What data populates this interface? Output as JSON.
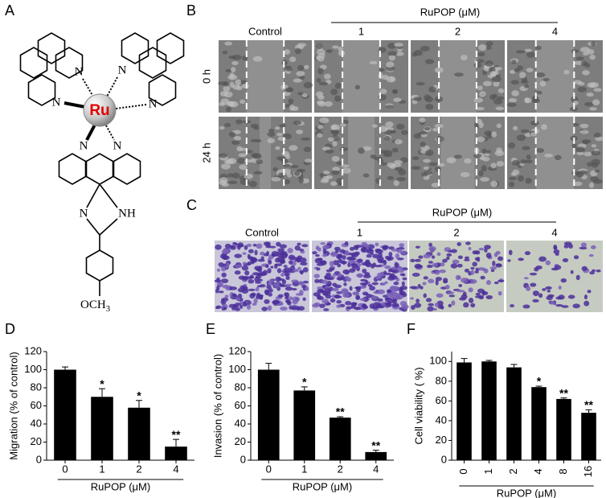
{
  "panel_labels": [
    "A",
    "B",
    "C",
    "D",
    "E",
    "F"
  ],
  "molecule": {
    "metal": "Ru",
    "atoms": [
      "N",
      "N",
      "N",
      "N",
      "N",
      "N",
      "N",
      "NH"
    ],
    "substituent": "OCH",
    "substituent_subscript": "3"
  },
  "wound_healing": {
    "group_title": "RuPOP (μM)",
    "columns": [
      "Control",
      "1",
      "2",
      "4"
    ],
    "rows": [
      "0 h",
      "24 h"
    ]
  },
  "transwell": {
    "group_title": "RuPOP (μM)",
    "columns": [
      "Control",
      "1",
      "2",
      "4"
    ]
  },
  "chart_data": [
    {
      "type": "bar",
      "ylabel": "Migration (% of control)",
      "xlabel": "RuPOP (μM)",
      "categories": [
        "0",
        "1",
        "2",
        "4"
      ],
      "values": [
        100,
        70,
        58,
        15
      ],
      "errors": [
        3,
        9,
        8,
        8
      ],
      "annotations": [
        null,
        "*",
        "*",
        "**"
      ],
      "color": "#000000",
      "ylim": [
        0,
        120
      ],
      "yticks": [
        0,
        20,
        40,
        60,
        80,
        100,
        120
      ]
    },
    {
      "type": "bar",
      "ylabel": "Invasion (% of control)",
      "xlabel": "RuPOP (μM)",
      "categories": [
        "0",
        "1",
        "2",
        "4"
      ],
      "values": [
        100,
        77,
        47,
        9
      ],
      "errors": [
        7,
        4,
        1,
        2
      ],
      "annotations": [
        null,
        "*",
        "**",
        "**"
      ],
      "color": "#000000",
      "ylim": [
        0,
        120
      ],
      "yticks": [
        0,
        20,
        40,
        60,
        80,
        100,
        120
      ]
    },
    {
      "type": "bar",
      "ylabel": "Cell viability ( %)",
      "xlabel": "RuPOP (μM)",
      "categories": [
        "0",
        "1",
        "2",
        "4",
        "8",
        "16"
      ],
      "values": [
        99,
        100,
        94,
        74,
        62,
        48
      ],
      "errors": [
        4,
        1,
        3,
        1,
        1,
        3
      ],
      "annotations": [
        null,
        null,
        null,
        "*",
        "**",
        "**"
      ],
      "color": "#000000",
      "xtick_rotation": 90,
      "ylim": [
        0,
        110
      ],
      "yticks": [
        0,
        20,
        40,
        60,
        80,
        100
      ]
    }
  ]
}
